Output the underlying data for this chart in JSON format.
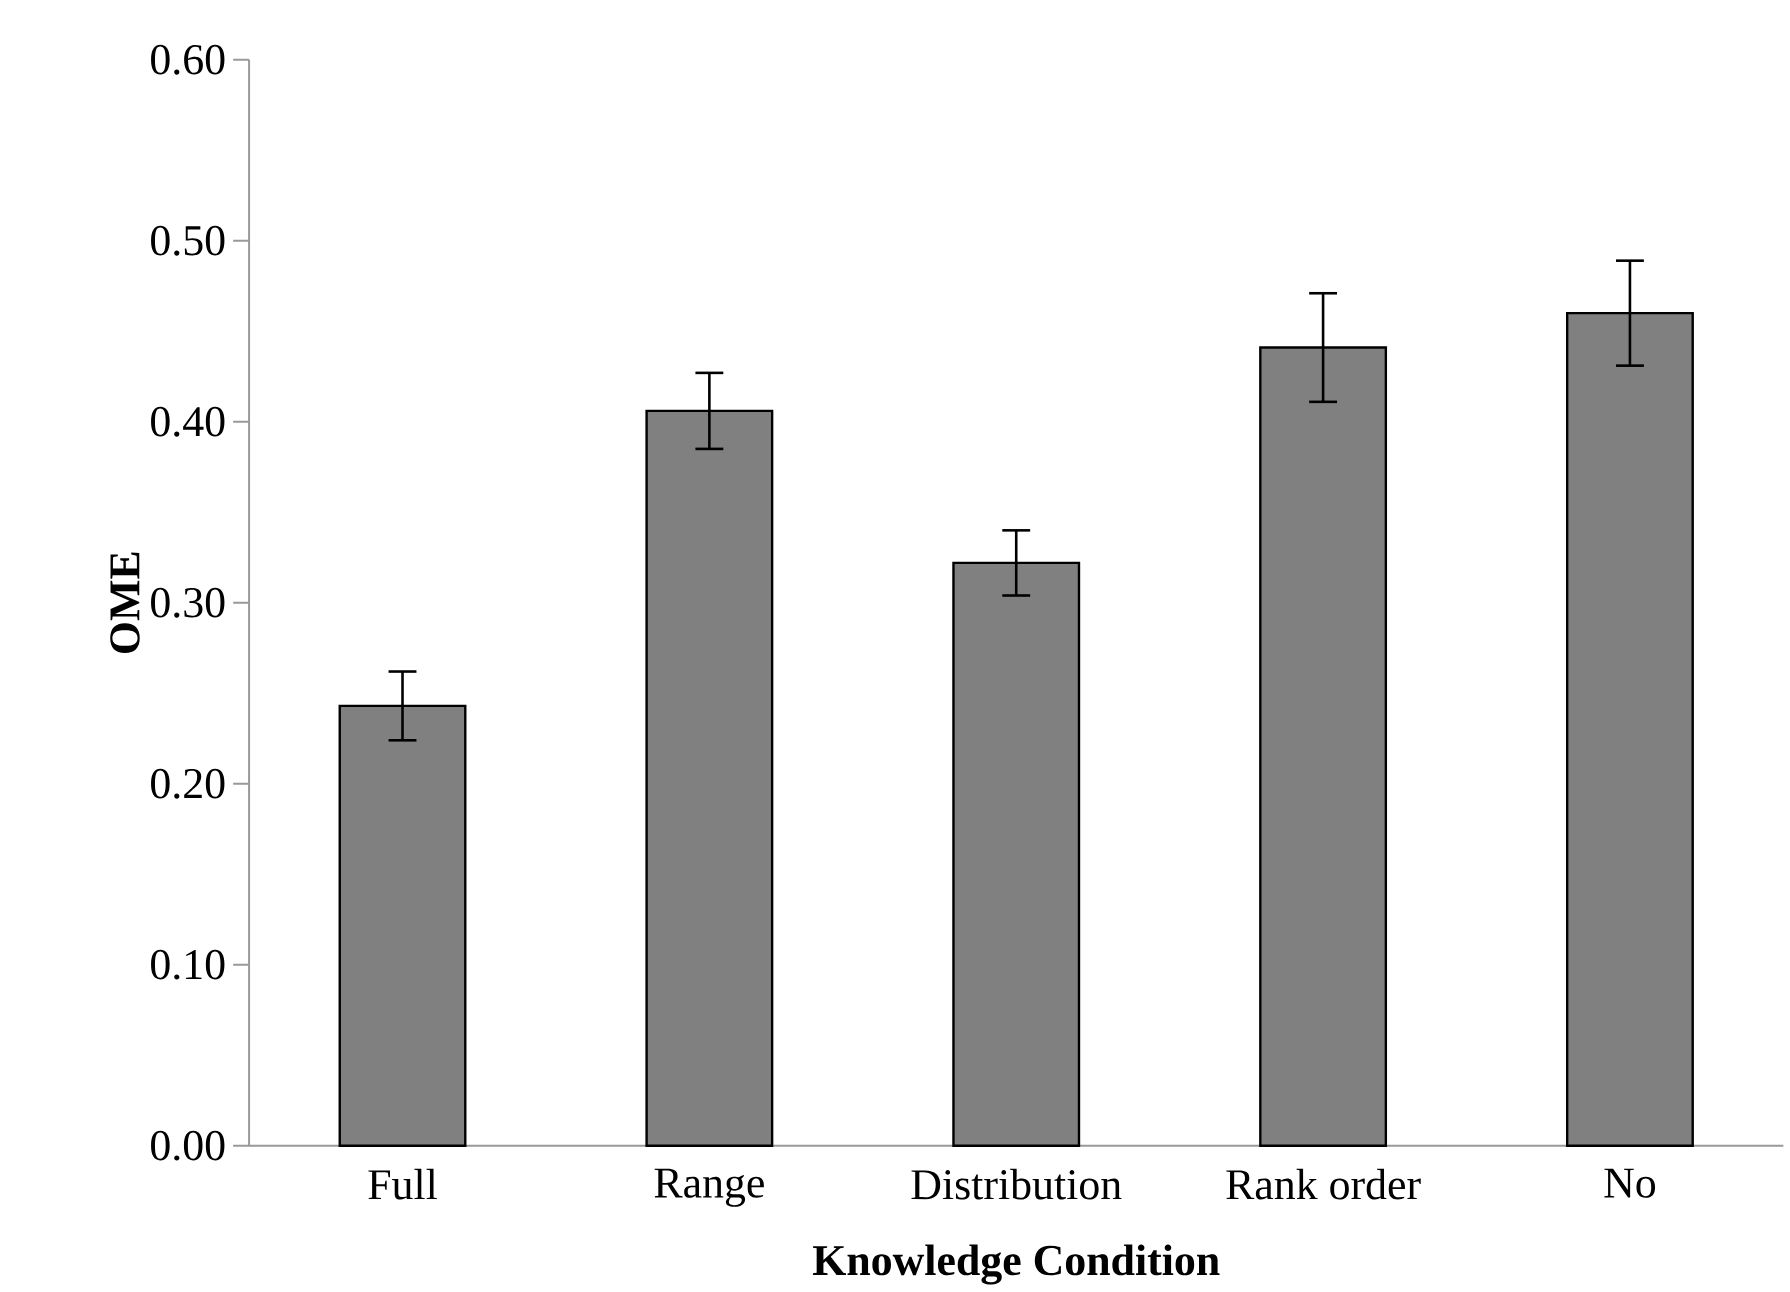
{
  "chart_data": {
    "type": "bar",
    "xlabel": "Knowledge Condition",
    "ylabel": "OME",
    "categories": [
      "Full",
      "Range",
      "Distribution",
      "Rank order",
      "No"
    ],
    "values": [
      0.243,
      0.406,
      0.322,
      0.441,
      0.46
    ],
    "errors": [
      0.019,
      0.021,
      0.018,
      0.03,
      0.029
    ],
    "color": "#808080",
    "ylim": [
      0,
      0.6
    ],
    "yticks": [
      {
        "value": 0,
        "label": "0.00"
      },
      {
        "value": 0.1,
        "label": "0.10"
      },
      {
        "value": 0.2,
        "label": "0.20"
      },
      {
        "value": 0.3,
        "label": "0.30"
      },
      {
        "value": 0.4,
        "label": "0.40"
      },
      {
        "value": 0.5,
        "label": "0.50"
      },
      {
        "value": 0.6,
        "label": "0.60"
      }
    ],
    "grid": false
  }
}
